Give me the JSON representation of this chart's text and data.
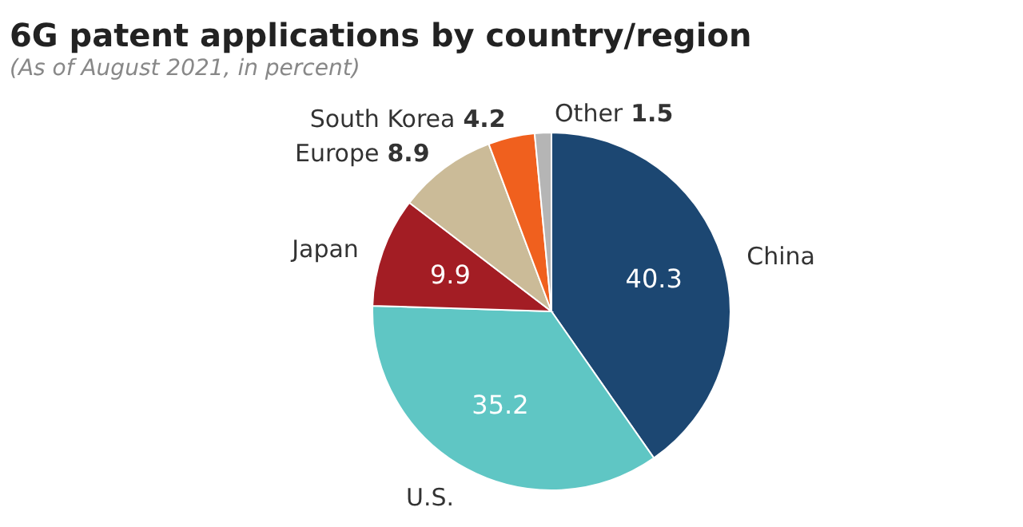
{
  "chart_data": {
    "type": "pie",
    "title": "6G patent applications by country/region",
    "subtitle": "(As of August 2021, in percent)",
    "categories": [
      "China",
      "U.S.",
      "Japan",
      "Europe",
      "South Korea",
      "Other"
    ],
    "values": [
      40.3,
      35.2,
      9.9,
      8.9,
      4.2,
      1.5
    ],
    "colors": [
      "#1c4772",
      "#5fc6c4",
      "#a31d24",
      "#cbbb98",
      "#f0601e",
      "#b5b5b5"
    ],
    "data_labels": true,
    "legend": false
  }
}
